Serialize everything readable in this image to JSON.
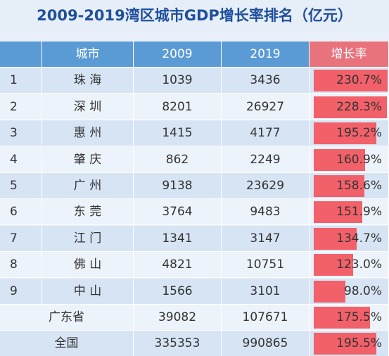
{
  "title": "2009-2019湾区城市GDP增长率排名（亿元）",
  "table": {
    "header": [
      "城市",
      "2009",
      "2019",
      "增长率"
    ],
    "rows": [
      [
        "1",
        "珠 海",
        "1039",
        "3436",
        "230.7%"
      ],
      [
        "2",
        "深 圳",
        "8201",
        "26927",
        "228.3%"
      ],
      [
        "3",
        "惠 州",
        "1415",
        "4177",
        "195.2%"
      ],
      [
        "4",
        "肇 庆",
        "862",
        "2249",
        "160.9%"
      ],
      [
        "5",
        "广 州",
        "9138",
        "23629",
        "158.6%"
      ],
      [
        "6",
        "东 莞",
        "3764",
        "9483",
        "151.9%"
      ],
      [
        "7",
        "江 门",
        "1341",
        "3147",
        "134.7%"
      ],
      [
        "8",
        "佛 山",
        "4821",
        "10751",
        "123.0%"
      ],
      [
        "9",
        "中 山",
        "1566",
        "3101",
        "98.0%"
      ],
      [
        "广东省",
        "39082",
        "107671",
        "175.5%"
      ],
      [
        "全国",
        "335353",
        "990865",
        "195.5%"
      ]
    ]
  }
}
